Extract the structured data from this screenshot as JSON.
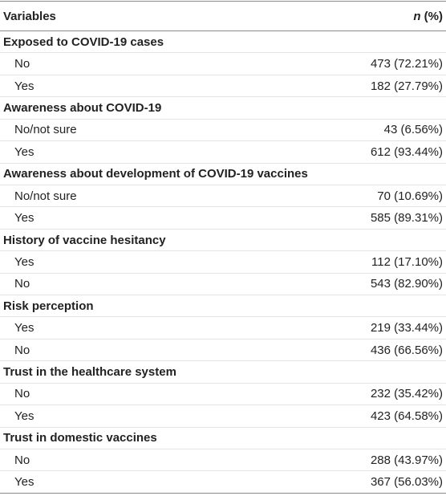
{
  "table": {
    "header": {
      "variables": "Variables",
      "n_symbol": "n",
      "n_suffix": " (%)"
    },
    "groups": [
      {
        "title": "Exposed to COVID-19 cases",
        "rows": [
          {
            "label": "No",
            "value": "473 (72.21%)"
          },
          {
            "label": "Yes",
            "value": "182 (27.79%)"
          }
        ]
      },
      {
        "title": "Awareness about COVID-19",
        "rows": [
          {
            "label": "No/not sure",
            "value": "43 (6.56%)"
          },
          {
            "label": "Yes",
            "value": "612 (93.44%)"
          }
        ]
      },
      {
        "title": "Awareness about development of COVID-19 vaccines",
        "rows": [
          {
            "label": "No/not sure",
            "value": "70 (10.69%)"
          },
          {
            "label": "Yes",
            "value": "585 (89.31%)"
          }
        ]
      },
      {
        "title": "History of vaccine hesitancy",
        "rows": [
          {
            "label": "Yes",
            "value": "112 (17.10%)"
          },
          {
            "label": "No",
            "value": "543 (82.90%)"
          }
        ]
      },
      {
        "title": "Risk perception",
        "rows": [
          {
            "label": "Yes",
            "value": "219 (33.44%)"
          },
          {
            "label": "No",
            "value": "436 (66.56%)"
          }
        ]
      },
      {
        "title": "Trust in the healthcare system",
        "rows": [
          {
            "label": "No",
            "value": "232 (35.42%)"
          },
          {
            "label": "Yes",
            "value": "423 (64.58%)"
          }
        ]
      },
      {
        "title": "Trust in domestic vaccines",
        "rows": [
          {
            "label": "No",
            "value": "288 (43.97%)"
          },
          {
            "label": "Yes",
            "value": "367 (56.03%)"
          }
        ]
      }
    ]
  }
}
